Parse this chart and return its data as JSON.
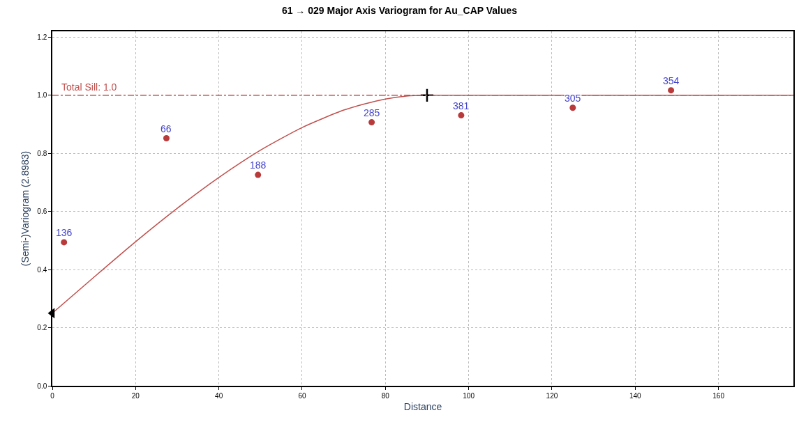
{
  "chart_data": {
    "type": "scatter",
    "title": "61 → 029 Major Axis Variogram for Au_CAP Values",
    "xlabel": "Distance",
    "ylabel": "(Semi-)Variogram (2.8983)",
    "xlim": [
      0,
      178
    ],
    "ylim": [
      0,
      1.22
    ],
    "xticks": [
      0,
      20,
      40,
      60,
      80,
      100,
      120,
      140,
      160
    ],
    "yticks": [
      {
        "value": 0,
        "label": "0.0"
      },
      0.2,
      0.4,
      0.6,
      0.8,
      {
        "value": 1,
        "label": "1.0"
      },
      1.2
    ],
    "grid": true,
    "series": [
      {
        "marker": "circle",
        "color": "#b83a3a",
        "x": [
          2.8,
          27.4,
          49.4,
          76.7,
          98.2,
          125.0,
          148.6
        ],
        "values": [
          0.494,
          0.852,
          0.726,
          0.907,
          0.931,
          0.957,
          1.017
        ]
      },
      {
        "type": "line",
        "marker": "none",
        "line_style": "solid",
        "color": "#c0504d",
        "x": [
          0,
          10,
          20,
          30,
          40,
          50,
          60,
          70,
          75,
          80,
          85,
          90,
          178
        ],
        "values": [
          0.25,
          0.374,
          0.496,
          0.611,
          0.717,
          0.811,
          0.889,
          0.949,
          0.97,
          0.987,
          0.997,
          1.0,
          1.0
        ]
      },
      {
        "type": "scatter",
        "marker": "triangle",
        "color": "#000000",
        "x": [
          0
        ],
        "values": [
          0.25
        ]
      },
      {
        "type": "scatter",
        "marker": "cross",
        "color": "#000000",
        "x": [
          90
        ],
        "values": [
          1.0
        ]
      }
    ],
    "annotations": [
      {
        "text": "136",
        "x": 2.8,
        "y": 0.494
      },
      {
        "text": "66",
        "x": 27.4,
        "y": 0.852
      },
      {
        "text": "188",
        "x": 49.4,
        "y": 0.726
      },
      {
        "text": "285",
        "x": 76.7,
        "y": 0.907
      },
      {
        "text": "381",
        "x": 98.2,
        "y": 0.931
      },
      {
        "text": "305",
        "x": 125.0,
        "y": 0.957
      },
      {
        "text": "354",
        "x": 148.6,
        "y": 1.017
      }
    ],
    "ref_lines": [
      {
        "axis": "y",
        "value": 1.0,
        "label": "Total Sill: 1.0",
        "color": "#c0504d",
        "line_style": "dashed"
      }
    ]
  }
}
